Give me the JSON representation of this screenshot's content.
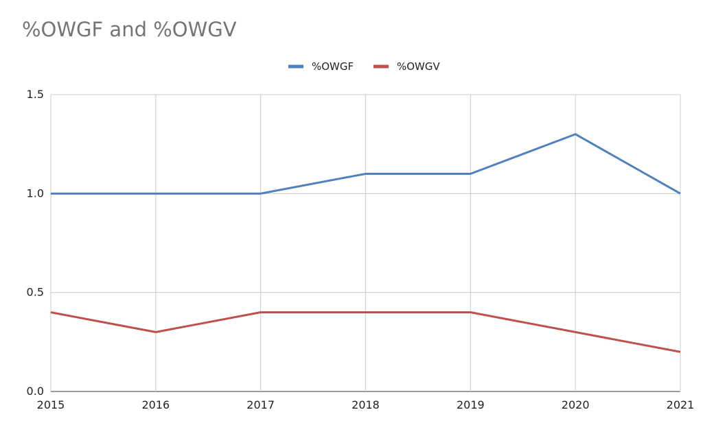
{
  "chart_data": {
    "type": "line",
    "title": "%OWGF and %OWGV",
    "xlabel": "",
    "ylabel": "",
    "categories": [
      "2015",
      "2016",
      "2017",
      "2018",
      "2019",
      "2020",
      "2021"
    ],
    "y_ticks": [
      "0.0",
      "0.5",
      "1.0",
      "1.5"
    ],
    "ylim": [
      0,
      1.5
    ],
    "grid": true,
    "legend_position": "top",
    "series": [
      {
        "name": "%OWGF",
        "color": "#4f81bd",
        "values": [
          1.0,
          1.0,
          1.0,
          1.1,
          1.1,
          1.3,
          1.0
        ]
      },
      {
        "name": "%OWGV",
        "color": "#c0504d",
        "values": [
          0.4,
          0.3,
          0.4,
          0.4,
          0.4,
          0.3,
          0.2
        ]
      }
    ]
  }
}
